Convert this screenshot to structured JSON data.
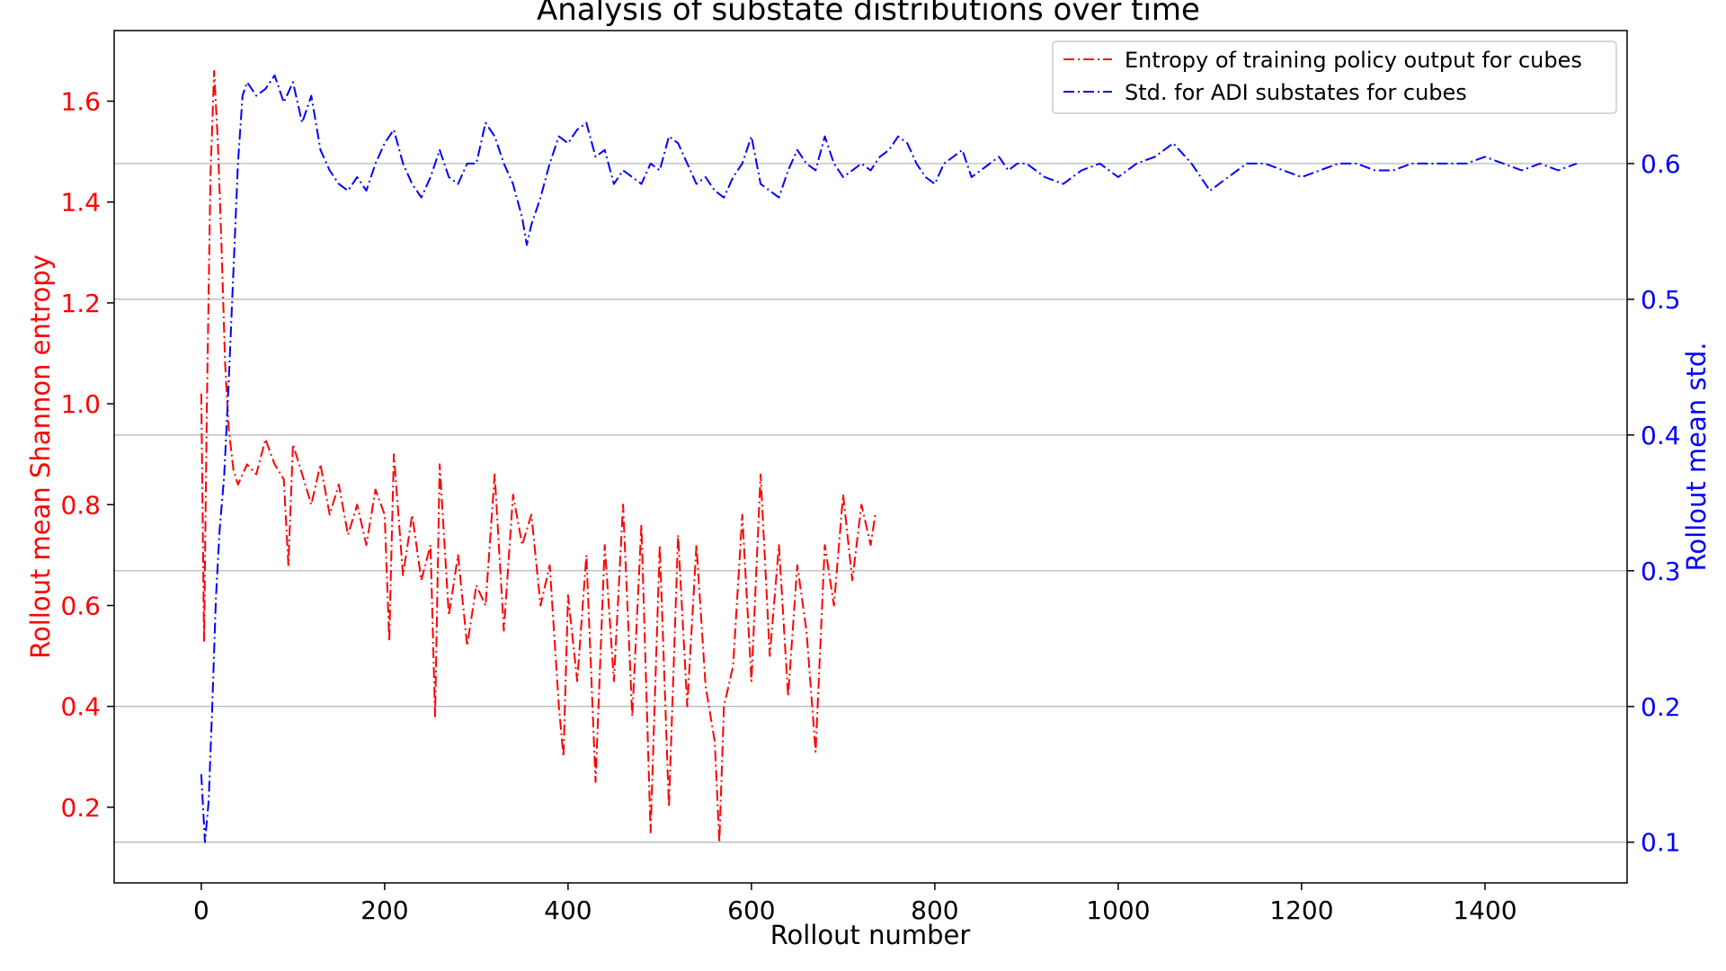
{
  "chart_data": {
    "type": "line",
    "title": "Analysis of substate distributions over time",
    "xlabel": "Rollout number",
    "ylabel_left": "Rollout mean Shannon entropy",
    "ylabel_right": "Rollout mean std.",
    "xlim": [
      -95,
      1555
    ],
    "ylim_left": [
      0.05,
      1.74
    ],
    "ylim_right": [
      0.07,
      0.698
    ],
    "x_ticks": [
      0,
      200,
      400,
      600,
      800,
      1000,
      1200,
      1400
    ],
    "x_tick_labels": [
      "0",
      "200",
      "400",
      "600",
      "800",
      "1000",
      "1200",
      "1400"
    ],
    "y_ticks_left": [
      0.2,
      0.4,
      0.6,
      0.8,
      1.0,
      1.2,
      1.4,
      1.6
    ],
    "y_tick_labels_left": [
      "0.2",
      "0.4",
      "0.6",
      "0.8",
      "1.0",
      "1.2",
      "1.4",
      "1.6"
    ],
    "y_ticks_right": [
      0.1,
      0.2,
      0.3,
      0.4,
      0.5,
      0.6
    ],
    "y_tick_labels_right": [
      "0.1",
      "0.2",
      "0.3",
      "0.4",
      "0.5",
      "0.6"
    ],
    "grid": "horizontal lines at right-axis ticks",
    "legend": "top-right",
    "colors": {
      "left_axis": "#ff0000",
      "right_axis": "#0000ff",
      "grid": "#b0b0b0",
      "frame": "#000000"
    },
    "series": [
      {
        "name": "Entropy of training policy output for cubes",
        "axis": "left",
        "color": "#ff0000",
        "style": "dashdot",
        "x": [
          0,
          3,
          6,
          10,
          14,
          18,
          22,
          26,
          30,
          35,
          40,
          50,
          60,
          70,
          80,
          90,
          95,
          100,
          110,
          120,
          130,
          140,
          150,
          160,
          170,
          180,
          190,
          200,
          205,
          210,
          220,
          230,
          240,
          250,
          255,
          260,
          270,
          280,
          290,
          300,
          310,
          320,
          330,
          340,
          350,
          360,
          370,
          380,
          390,
          395,
          400,
          410,
          420,
          430,
          440,
          450,
          460,
          470,
          480,
          490,
          500,
          510,
          520,
          530,
          540,
          550,
          560,
          565,
          570,
          580,
          590,
          600,
          610,
          620,
          630,
          640,
          650,
          660,
          670,
          680,
          690,
          700,
          710,
          720,
          730,
          735
        ],
        "y": [
          1.02,
          0.53,
          0.98,
          1.45,
          1.66,
          1.52,
          1.32,
          1.08,
          0.95,
          0.87,
          0.84,
          0.88,
          0.86,
          0.93,
          0.88,
          0.85,
          0.68,
          0.92,
          0.86,
          0.8,
          0.88,
          0.78,
          0.84,
          0.74,
          0.8,
          0.72,
          0.83,
          0.78,
          0.53,
          0.9,
          0.66,
          0.78,
          0.65,
          0.72,
          0.38,
          0.88,
          0.58,
          0.7,
          0.52,
          0.64,
          0.6,
          0.86,
          0.55,
          0.82,
          0.72,
          0.78,
          0.6,
          0.68,
          0.4,
          0.3,
          0.62,
          0.45,
          0.7,
          0.25,
          0.72,
          0.45,
          0.8,
          0.38,
          0.76,
          0.15,
          0.72,
          0.2,
          0.74,
          0.4,
          0.72,
          0.44,
          0.33,
          0.13,
          0.4,
          0.48,
          0.78,
          0.45,
          0.86,
          0.5,
          0.72,
          0.42,
          0.68,
          0.55,
          0.31,
          0.72,
          0.6,
          0.82,
          0.65,
          0.8,
          0.72,
          0.78
        ]
      },
      {
        "name": "Std. for ADI substates for cubes",
        "axis": "right",
        "color": "#0000ff",
        "style": "dashdot",
        "x": [
          0,
          4,
          8,
          12,
          16,
          20,
          25,
          30,
          35,
          40,
          45,
          50,
          60,
          70,
          80,
          90,
          100,
          110,
          120,
          130,
          140,
          150,
          160,
          170,
          180,
          190,
          200,
          210,
          220,
          230,
          240,
          250,
          260,
          270,
          280,
          290,
          300,
          310,
          320,
          330,
          340,
          350,
          355,
          360,
          370,
          380,
          390,
          400,
          410,
          420,
          430,
          440,
          450,
          460,
          470,
          480,
          490,
          500,
          510,
          520,
          530,
          540,
          550,
          560,
          570,
          580,
          590,
          600,
          610,
          620,
          630,
          640,
          650,
          660,
          670,
          680,
          690,
          700,
          710,
          720,
          730,
          740,
          750,
          760,
          770,
          780,
          790,
          800,
          810,
          820,
          830,
          840,
          850,
          860,
          870,
          880,
          890,
          900,
          920,
          940,
          960,
          980,
          1000,
          1020,
          1040,
          1060,
          1080,
          1100,
          1120,
          1140,
          1160,
          1180,
          1200,
          1220,
          1240,
          1260,
          1280,
          1300,
          1320,
          1340,
          1360,
          1380,
          1400,
          1420,
          1440,
          1460,
          1480,
          1500
        ],
        "y": [
          0.15,
          0.1,
          0.13,
          0.2,
          0.28,
          0.33,
          0.37,
          0.44,
          0.52,
          0.6,
          0.65,
          0.66,
          0.65,
          0.655,
          0.665,
          0.645,
          0.66,
          0.63,
          0.65,
          0.61,
          0.595,
          0.585,
          0.58,
          0.59,
          0.58,
          0.6,
          0.615,
          0.625,
          0.6,
          0.585,
          0.575,
          0.59,
          0.61,
          0.59,
          0.585,
          0.6,
          0.6,
          0.63,
          0.62,
          0.6,
          0.585,
          0.56,
          0.54,
          0.555,
          0.575,
          0.6,
          0.62,
          0.615,
          0.625,
          0.63,
          0.605,
          0.61,
          0.585,
          0.595,
          0.59,
          0.585,
          0.6,
          0.595,
          0.62,
          0.615,
          0.6,
          0.585,
          0.59,
          0.58,
          0.575,
          0.59,
          0.6,
          0.62,
          0.585,
          0.58,
          0.575,
          0.595,
          0.61,
          0.6,
          0.595,
          0.62,
          0.6,
          0.59,
          0.595,
          0.6,
          0.595,
          0.605,
          0.61,
          0.62,
          0.615,
          0.6,
          0.59,
          0.585,
          0.6,
          0.605,
          0.61,
          0.59,
          0.595,
          0.6,
          0.605,
          0.595,
          0.6,
          0.6,
          0.59,
          0.585,
          0.595,
          0.6,
          0.59,
          0.6,
          0.605,
          0.615,
          0.6,
          0.58,
          0.59,
          0.6,
          0.6,
          0.595,
          0.59,
          0.595,
          0.6,
          0.6,
          0.595,
          0.595,
          0.6,
          0.6,
          0.6,
          0.6,
          0.605,
          0.6,
          0.595,
          0.6,
          0.595,
          0.6
        ]
      }
    ]
  }
}
